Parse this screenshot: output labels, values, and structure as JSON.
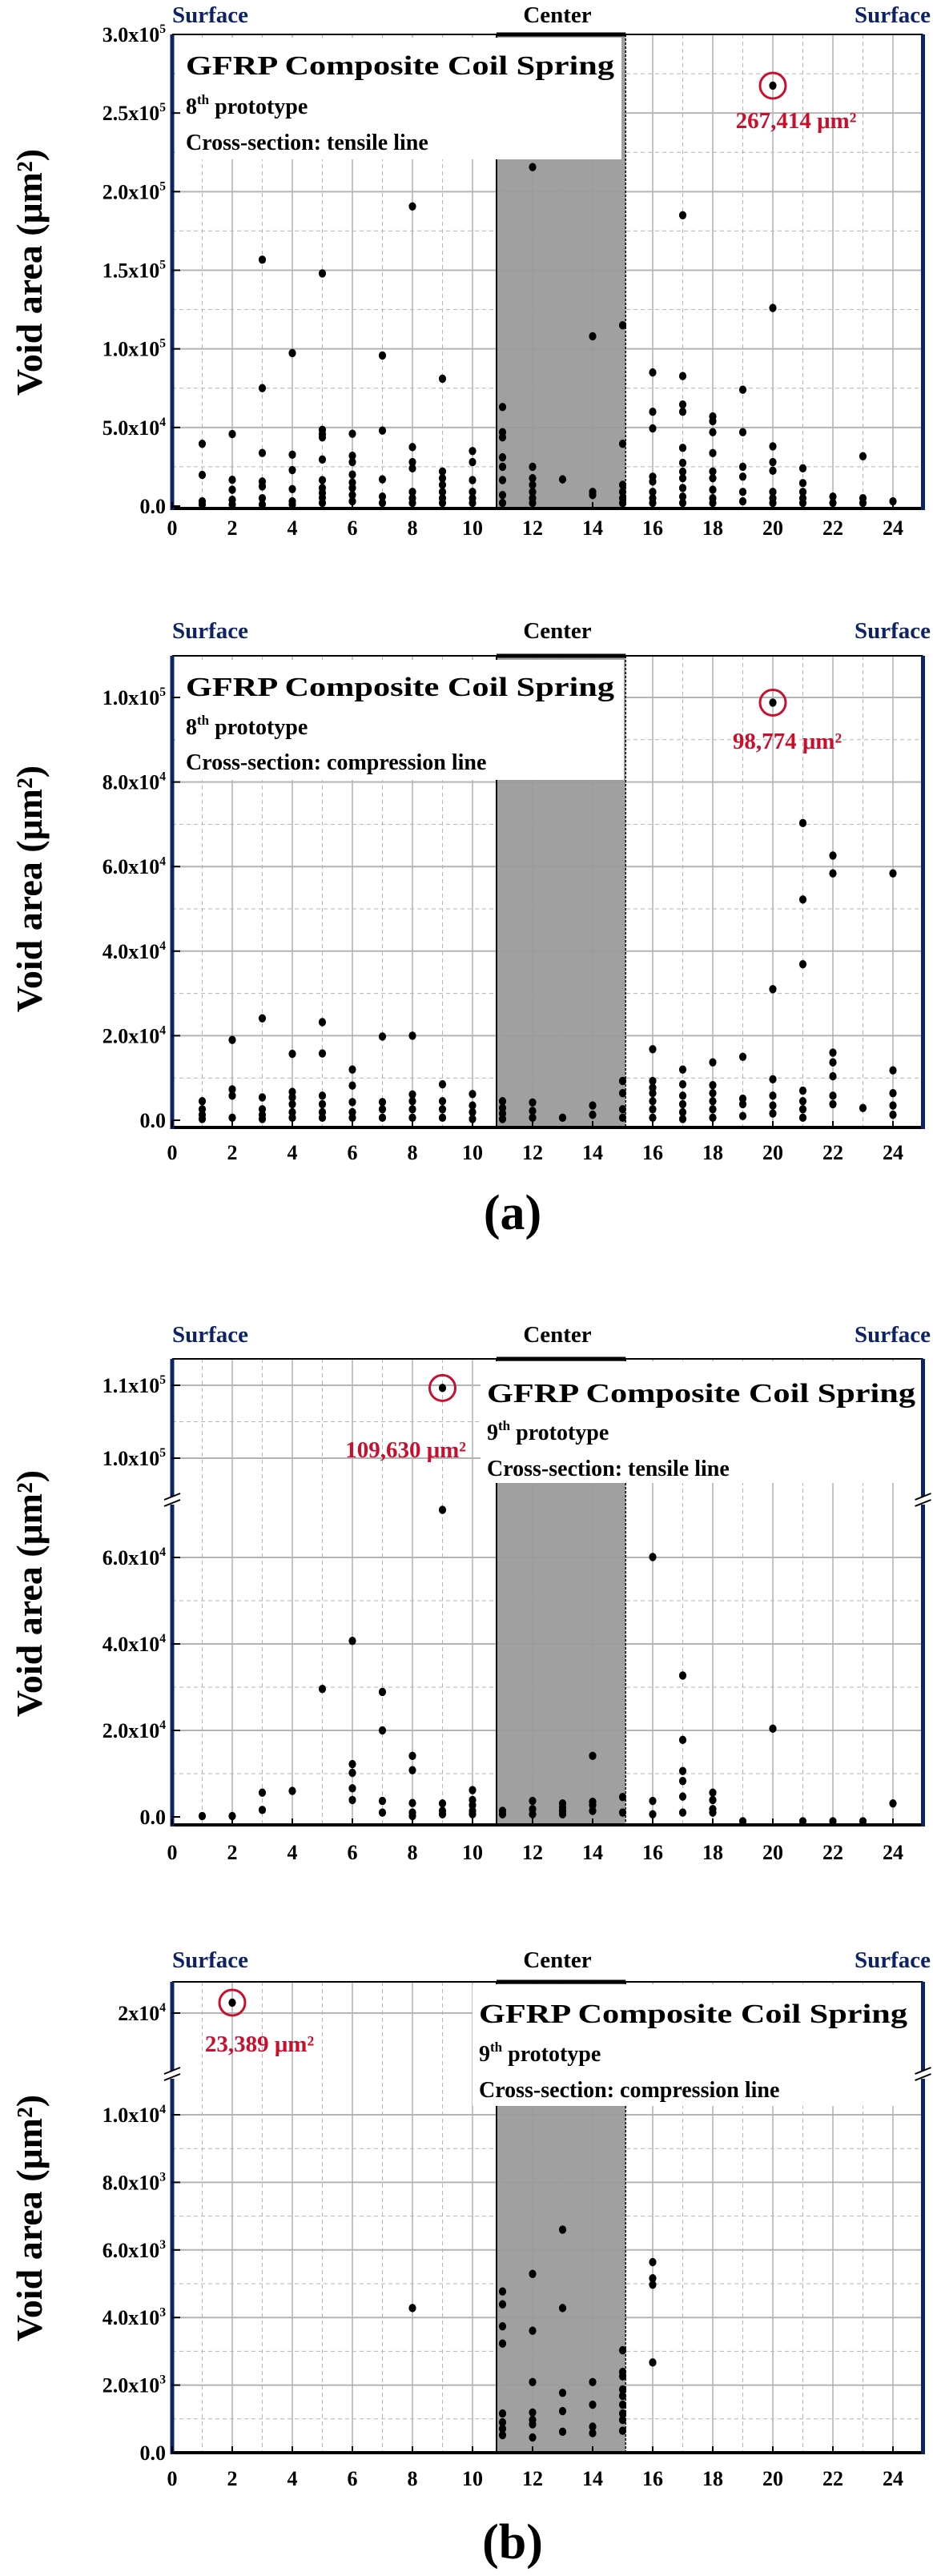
{
  "figure_labels": [
    "(a)",
    "(b)"
  ],
  "colors": {
    "surface_label": "#0d2366",
    "frame_side": "#0d2366",
    "annotation": "#c8102e",
    "center_region": "#9b9b9b",
    "points": "#000000",
    "grid": "#b4b4b4"
  },
  "chart_data": [
    {
      "type": "scatter",
      "group": "(a)",
      "top_labels": {
        "left": "Surface",
        "center": "Center",
        "right": "Surface"
      },
      "legend": {
        "title": "GFRP Composite Coil Spring",
        "prototype_num": "8",
        "prototype_sup": "th",
        "prototype_rest": " prototype",
        "cross_section": "Cross-section: tensile line"
      },
      "ylabel": "Void area (μm²)",
      "xlabel": "",
      "xlim": [
        0,
        25
      ],
      "ylim": [
        -1500,
        300000
      ],
      "xticks": [
        "0",
        "2",
        "4",
        "6",
        "8",
        "10",
        "12",
        "14",
        "16",
        "18",
        "20",
        "22",
        "24"
      ],
      "yticks": [
        {
          "value": 0,
          "label": "0.0"
        },
        {
          "value": 50000,
          "label": "5.0x10^4"
        },
        {
          "value": 100000,
          "label": "1.0x10^5"
        },
        {
          "value": 150000,
          "label": "1.5x10^5"
        },
        {
          "value": 200000,
          "label": "2.0x10^5"
        },
        {
          "value": 250000,
          "label": "2.5x10^5"
        },
        {
          "value": 300000,
          "label": "3.0x10^5"
        }
      ],
      "center_region": [
        10.8,
        15.1
      ],
      "annotation": {
        "x": 20,
        "y": 267414,
        "label": "267,414 μm²"
      },
      "series": [
        {
          "x": 1,
          "y": [
            39600,
            19800,
            3000,
            1000
          ]
        },
        {
          "x": 2,
          "y": [
            45800,
            16700,
            10400,
            4000,
            1000
          ]
        },
        {
          "x": 3,
          "y": [
            156700,
            75000,
            33800,
            15600,
            12500,
            5000,
            1000
          ]
        },
        {
          "x": 4,
          "y": [
            97300,
            32700,
            22900,
            10800,
            3000,
            1000
          ]
        },
        {
          "x": 5,
          "y": [
            148000,
            48500,
            45800,
            43700,
            29600,
            16500,
            11500,
            8300,
            5200,
            2000
          ]
        },
        {
          "x": 6,
          "y": [
            46000,
            32000,
            28000,
            20000,
            15000,
            11500,
            7000,
            3000
          ]
        },
        {
          "x": 7,
          "y": [
            95800,
            48000,
            17000,
            6000,
            2000
          ]
        },
        {
          "x": 8,
          "y": [
            190600,
            37500,
            28000,
            24000,
            9000,
            5000,
            2000
          ]
        },
        {
          "x": 9,
          "y": [
            81000,
            22000,
            17700,
            13500,
            9000,
            5000,
            2000
          ]
        },
        {
          "x": 10,
          "y": [
            35000,
            28000,
            16500,
            9000,
            5000,
            2000
          ]
        },
        {
          "x": 11,
          "y": [
            63000,
            47000,
            43700,
            31000,
            25000,
            16500,
            7000,
            2000
          ]
        },
        {
          "x": 12,
          "y": [
            215600,
            25000,
            17700,
            13500,
            9000,
            5000,
            2000
          ]
        },
        {
          "x": 13,
          "y": [
            17000
          ]
        },
        {
          "x": 14,
          "y": [
            108000,
            9000,
            7000
          ]
        },
        {
          "x": 15,
          "y": [
            115000,
            39600,
            13500,
            9000,
            5000,
            2000
          ]
        },
        {
          "x": 16,
          "y": [
            85000,
            60000,
            49400,
            18700,
            15600,
            9000,
            5000,
            2000
          ]
        },
        {
          "x": 17,
          "y": [
            185000,
            82700,
            64600,
            60000,
            37000,
            27500,
            21900,
            17700,
            11500,
            6000,
            2000
          ]
        },
        {
          "x": 18,
          "y": [
            57000,
            54000,
            47000,
            33700,
            22000,
            17700,
            10400,
            5000,
            2000
          ]
        },
        {
          "x": 19,
          "y": [
            74000,
            47000,
            25000,
            18700,
            9000,
            3000
          ]
        },
        {
          "x": 20,
          "y": [
            267414,
            126000,
            38000,
            28000,
            22500,
            9000,
            5000,
            2000
          ]
        },
        {
          "x": 21,
          "y": [
            24000,
            14600,
            9000,
            5000,
            2000
          ]
        },
        {
          "x": 22,
          "y": [
            6000,
            2000
          ]
        },
        {
          "x": 23,
          "y": [
            31700,
            5000,
            2000
          ]
        },
        {
          "x": 24,
          "y": [
            3000
          ]
        }
      ]
    },
    {
      "type": "scatter",
      "group": "(a)",
      "top_labels": {
        "left": "Surface",
        "center": "Center",
        "right": "Surface"
      },
      "legend": {
        "title": "GFRP Composite Coil Spring",
        "prototype_num": "8",
        "prototype_sup": "th",
        "prototype_rest": " prototype",
        "cross_section": "Cross-section: compression line"
      },
      "ylabel": "Void area (μm²)",
      "xlabel": "",
      "xlim": [
        0,
        25
      ],
      "ylim": [
        -1700,
        110000
      ],
      "xticks": [
        "0",
        "2",
        "4",
        "6",
        "8",
        "10",
        "12",
        "14",
        "16",
        "18",
        "20",
        "22",
        "24"
      ],
      "yticks": [
        {
          "value": 0,
          "label": "0.0"
        },
        {
          "value": 20000,
          "label": "2.0x10^4"
        },
        {
          "value": 40000,
          "label": "4.0x10^4"
        },
        {
          "value": 60000,
          "label": "6.0x10^4"
        },
        {
          "value": 80000,
          "label": "8.0x10^4"
        },
        {
          "value": 100000,
          "label": "1.0x10^5"
        }
      ],
      "center_region": [
        10.8,
        15.1
      ],
      "annotation": {
        "x": 20,
        "y": 98774,
        "label": "98,774 μm²"
      },
      "series": [
        {
          "x": 1,
          "y": [
            4500,
            2600,
            1300,
            300
          ]
        },
        {
          "x": 2,
          "y": [
            19000,
            7300,
            5800,
            600
          ]
        },
        {
          "x": 3,
          "y": [
            24100,
            5400,
            2600,
            1300,
            300
          ]
        },
        {
          "x": 4,
          "y": [
            15700,
            6700,
            5400,
            3800,
            1900,
            600
          ]
        },
        {
          "x": 5,
          "y": [
            23200,
            15800,
            5800,
            3800,
            1900,
            600
          ]
        },
        {
          "x": 6,
          "y": [
            12000,
            8200,
            4300,
            1900,
            600
          ]
        },
        {
          "x": 7,
          "y": [
            19800,
            4300,
            2600,
            600
          ]
        },
        {
          "x": 8,
          "y": [
            20000,
            6100,
            4500,
            2600,
            600
          ]
        },
        {
          "x": 9,
          "y": [
            8500,
            4500,
            2600,
            600
          ]
        },
        {
          "x": 10,
          "y": [
            6200,
            3500,
            1900,
            300
          ]
        },
        {
          "x": 11,
          "y": [
            4500,
            2900,
            1600,
            300
          ]
        },
        {
          "x": 12,
          "y": [
            4200,
            2200,
            600
          ]
        },
        {
          "x": 13,
          "y": [
            600
          ]
        },
        {
          "x": 14,
          "y": [
            3500,
            1300
          ]
        },
        {
          "x": 15,
          "y": [
            9300,
            6400,
            2600,
            600
          ]
        },
        {
          "x": 16,
          "y": [
            16800,
            9300,
            7700,
            6400,
            4500,
            2600,
            600
          ]
        },
        {
          "x": 17,
          "y": [
            12000,
            8500,
            5800,
            3800,
            1900,
            300
          ]
        },
        {
          "x": 18,
          "y": [
            13700,
            8300,
            6400,
            4500,
            2600,
            600
          ]
        },
        {
          "x": 19,
          "y": [
            15000,
            5100,
            3800,
            1000
          ]
        },
        {
          "x": 20,
          "y": [
            98774,
            31000,
            9700,
            5800,
            3500,
            1600
          ]
        },
        {
          "x": 21,
          "y": [
            70300,
            52200,
            36900,
            7000,
            4500,
            2600,
            600
          ]
        },
        {
          "x": 22,
          "y": [
            62600,
            58400,
            16000,
            13700,
            10400,
            5800,
            3800
          ]
        },
        {
          "x": 23,
          "y": [
            2900
          ]
        },
        {
          "x": 24,
          "y": [
            58400,
            11800,
            6400,
            3500,
            1300
          ]
        }
      ]
    },
    {
      "type": "scatter",
      "group": "(b)",
      "top_labels": {
        "left": "Surface",
        "center": "Center",
        "right": "Surface"
      },
      "legend": {
        "title": "GFRP Composite Coil Spring",
        "prototype_num": "9",
        "prototype_sup": "th",
        "prototype_rest": " prototype",
        "cross_section": "Cross-section: tensile line"
      },
      "ylabel": "Void area (μm²)",
      "xlabel": "",
      "xlim": [
        0,
        25
      ],
      "ylim": [
        -1900,
        113600
      ],
      "axis_break": {
        "lower_max": 73000,
        "upper_min": 94000
      },
      "xticks": [
        "0",
        "2",
        "4",
        "6",
        "8",
        "10",
        "12",
        "14",
        "16",
        "18",
        "20",
        "22",
        "24"
      ],
      "yticks": [
        {
          "value": 0,
          "label": "0.0"
        },
        {
          "value": 20000,
          "label": "2.0x10^4"
        },
        {
          "value": 40000,
          "label": "4.0x10^4"
        },
        {
          "value": 60000,
          "label": "6.0x10^4"
        },
        {
          "value": 100000,
          "label": "1.0x10^5"
        },
        {
          "value": 110000,
          "label": "1.1x10^5"
        }
      ],
      "center_region": [
        10.8,
        15.1
      ],
      "annotation": {
        "x": 9,
        "y": 109630,
        "label": "109,630 μm²"
      },
      "series": [
        {
          "x": 1,
          "y": [
            200
          ]
        },
        {
          "x": 2,
          "y": [
            200
          ]
        },
        {
          "x": 3,
          "y": [
            5600,
            1600
          ]
        },
        {
          "x": 4,
          "y": [
            6000
          ]
        },
        {
          "x": 5,
          "y": [
            29600
          ]
        },
        {
          "x": 6,
          "y": [
            40700,
            12200,
            10200,
            6600,
            3900
          ]
        },
        {
          "x": 7,
          "y": [
            28900,
            20000,
            3700,
            1000
          ]
        },
        {
          "x": 8,
          "y": [
            14100,
            10800,
            3200,
            1000,
            200
          ]
        },
        {
          "x": 9,
          "y": [
            109630,
            71000,
            3100,
            1400,
            600
          ]
        },
        {
          "x": 10,
          "y": [
            6200,
            3900,
            2700,
            1400,
            600
          ]
        },
        {
          "x": 11,
          "y": [
            1400,
            600
          ]
        },
        {
          "x": 12,
          "y": [
            3700,
            1800,
            600
          ]
        },
        {
          "x": 13,
          "y": [
            3100,
            2200,
            1400,
            600
          ]
        },
        {
          "x": 14,
          "y": [
            14100,
            3500,
            2700,
            1400
          ]
        },
        {
          "x": 15,
          "y": [
            4600,
            1000
          ]
        },
        {
          "x": 16,
          "y": [
            60100,
            3700,
            600
          ]
        },
        {
          "x": 17,
          "y": [
            32700,
            17800,
            10600,
            8300,
            4700,
            1000
          ]
        },
        {
          "x": 18,
          "y": [
            5600,
            3900,
            1800,
            1000
          ]
        },
        {
          "x": 19,
          "y": [
            -1000
          ]
        },
        {
          "x": 20,
          "y": [
            20400
          ]
        },
        {
          "x": 21,
          "y": [
            -1000
          ]
        },
        {
          "x": 22,
          "y": [
            -1000
          ]
        },
        {
          "x": 23,
          "y": [
            -1000
          ]
        },
        {
          "x": 24,
          "y": [
            3100
          ]
        }
      ]
    },
    {
      "type": "scatter",
      "group": "(b)",
      "top_labels": {
        "left": "Surface",
        "center": "Center",
        "right": "Surface"
      },
      "legend": {
        "title": "GFRP Composite Coil Spring",
        "prototype_num": "9",
        "prototype_sup": "th",
        "prototype_rest": " prototype",
        "cross_section": "Cross-section: compression line"
      },
      "ylabel": "Void area (μm²)",
      "xlabel": "",
      "xlim": [
        0,
        25
      ],
      "ylim": [
        0,
        30000
      ],
      "axis_break": {
        "lower_max": 11200,
        "upper_min": 19000
      },
      "xticks": [
        "0",
        "2",
        "4",
        "6",
        "8",
        "10",
        "12",
        "14",
        "16",
        "18",
        "20",
        "22",
        "24"
      ],
      "yticks": [
        {
          "value": 0,
          "label": "0.0"
        },
        {
          "value": 2000,
          "label": "2.0x10^3"
        },
        {
          "value": 4000,
          "label": "4.0x10^3"
        },
        {
          "value": 6000,
          "label": "6.0x10^3"
        },
        {
          "value": 8000,
          "label": "8.0x10^3"
        },
        {
          "value": 10000,
          "label": "1.0x10^4"
        },
        {
          "value": 20000,
          "label": "2x10^4"
        }
      ],
      "center_region": [
        10.8,
        15.1
      ],
      "annotation": {
        "x": 2,
        "y": 23389,
        "label": "23,389 μm²"
      },
      "series": [
        {
          "x": 2,
          "y": [
            23389
          ]
        },
        {
          "x": 8,
          "y": [
            4280
          ]
        },
        {
          "x": 11,
          "y": [
            4770,
            4390,
            3740,
            3230,
            1160,
            900,
            710,
            520
          ]
        },
        {
          "x": 12,
          "y": [
            5290,
            3610,
            2090,
            1190,
            970,
            840,
            450
          ]
        },
        {
          "x": 13,
          "y": [
            6600,
            4280,
            1770,
            1230,
            620
          ]
        },
        {
          "x": 14,
          "y": [
            2090,
            1420,
            770,
            580
          ]
        },
        {
          "x": 15,
          "y": [
            3030,
            2390,
            2260,
            1870,
            1680,
            1420,
            1160,
            970,
            650
          ]
        },
        {
          "x": 16,
          "y": [
            5640,
            5160,
            4970,
            2670
          ]
        }
      ]
    }
  ]
}
